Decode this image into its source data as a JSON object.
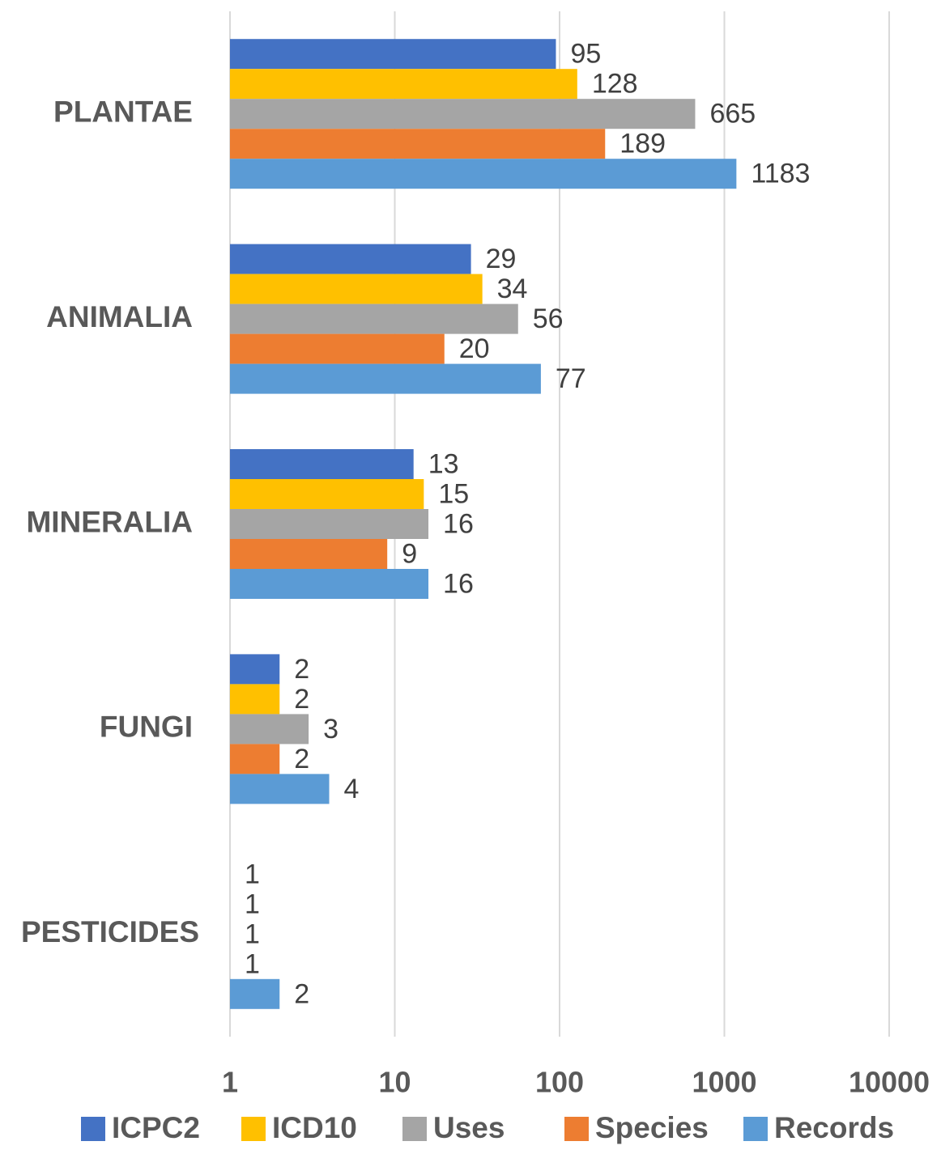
{
  "chart_data": {
    "type": "bar",
    "orientation": "horizontal",
    "log_scale": true,
    "grid": true,
    "categories": [
      "PLANTAE",
      "ANIMALIA",
      "MINERALIA",
      "FUNGI",
      "PESTICIDES"
    ],
    "series": [
      {
        "name": "ICPC2",
        "color": "#4472c4",
        "values": [
          95,
          29,
          13,
          2,
          1
        ]
      },
      {
        "name": "ICD10",
        "color": "#ffc000",
        "values": [
          128,
          34,
          15,
          2,
          1
        ]
      },
      {
        "name": "Uses",
        "color": "#a5a5a5",
        "values": [
          665,
          56,
          16,
          3,
          1
        ]
      },
      {
        "name": "Species",
        "color": "#ed7d31",
        "values": [
          189,
          20,
          9,
          2,
          1
        ]
      },
      {
        "name": "Records",
        "color": "#5b9bd5",
        "values": [
          1183,
          77,
          16,
          4,
          2
        ]
      }
    ],
    "xlim": [
      1,
      10000
    ],
    "xticks": [
      1,
      10,
      100,
      1000,
      10000
    ],
    "legend": "bottom"
  }
}
